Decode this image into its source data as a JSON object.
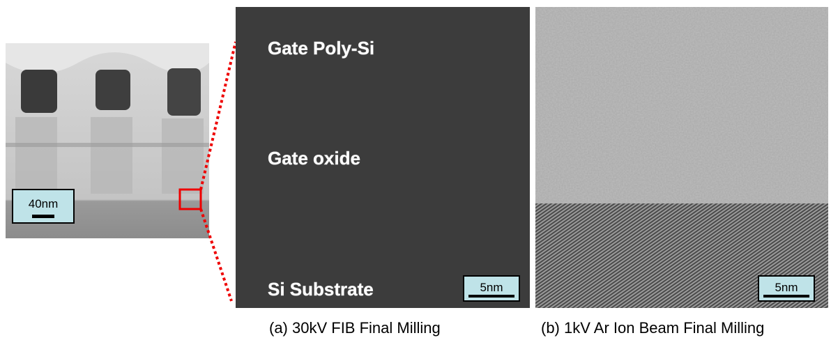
{
  "panels": [
    {
      "scale_bar": "40nm"
    },
    {
      "labels": [
        "Gate Poly-Si",
        "Gate oxide",
        "Si Substrate"
      ],
      "scale_bar": "5nm",
      "caption": "(a) 30kV FIB Final Milling"
    },
    {
      "scale_bar": "5nm",
      "caption": "(b) 1kV Ar Ion Beam Final Milling"
    }
  ]
}
